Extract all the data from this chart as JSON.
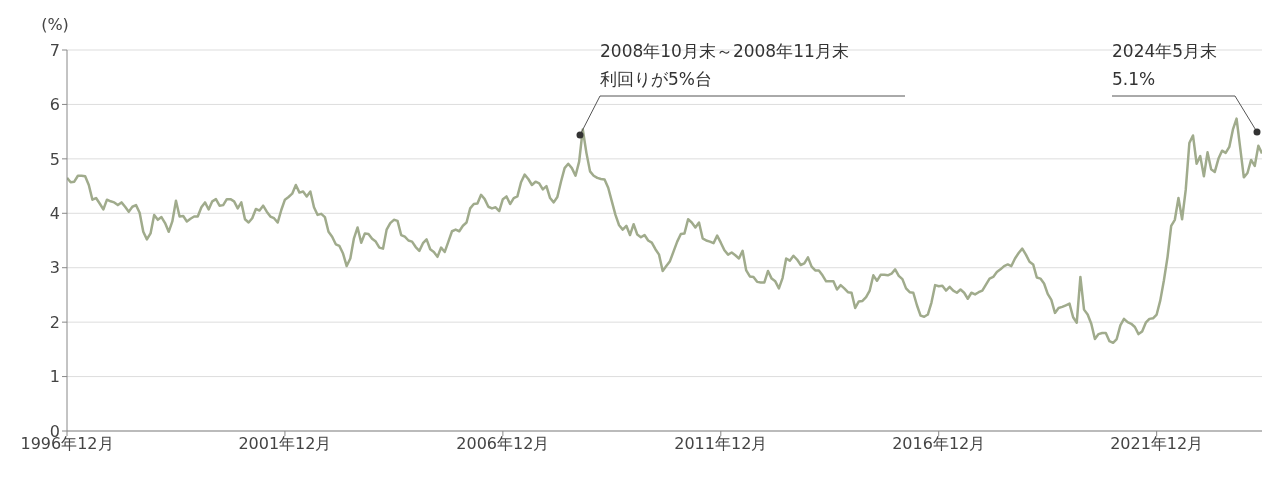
{
  "chart_data": {
    "type": "line",
    "ylabel": "(%)",
    "color": "#a0ab8c",
    "xlim": [
      "1996-12",
      "2024-05"
    ],
    "xticks": [
      {
        "value": "1996-12",
        "label": "1996年12月"
      },
      {
        "value": "2001-12",
        "label": "2001年12月"
      },
      {
        "value": "2006-12",
        "label": "2006年12月"
      },
      {
        "value": "2011-12",
        "label": "2011年12月"
      },
      {
        "value": "2016-12",
        "label": "2016年12月"
      },
      {
        "value": "2021-12",
        "label": "2021年12月"
      }
    ],
    "ylim": [
      0,
      7
    ],
    "yticks": [
      0,
      1,
      2,
      3,
      4,
      5,
      6,
      7
    ],
    "grid": "y",
    "annotations": [
      "2008年10月末～2008年11月末",
      "利回りが5%台",
      "2024年5月末",
      "5.1%"
    ],
    "x": [
      "1996-12",
      "1997-01",
      "1997-02",
      "1997-03",
      "1997-04",
      "1997-05",
      "1997-06",
      "1997-07",
      "1997-08",
      "1997-09",
      "1997-10",
      "1997-11",
      "1997-12",
      "1998-01",
      "1998-02",
      "1998-03",
      "1998-04",
      "1998-05",
      "1998-06",
      "1998-07",
      "1998-08",
      "1998-09",
      "1998-10",
      "1998-11",
      "1998-12",
      "1999-01",
      "1999-02",
      "1999-03",
      "1999-04",
      "1999-05",
      "1999-06",
      "1999-07",
      "1999-08",
      "1999-09",
      "1999-10",
      "1999-11",
      "1999-12",
      "2000-01",
      "2000-02",
      "2000-03",
      "2000-04",
      "2000-05",
      "2000-06",
      "2000-07",
      "2000-08",
      "2000-09",
      "2000-10",
      "2000-11",
      "2000-12",
      "2001-01",
      "2001-02",
      "2001-03",
      "2001-04",
      "2001-05",
      "2001-06",
      "2001-07",
      "2001-08",
      "2001-09",
      "2001-10",
      "2001-11",
      "2001-12",
      "2002-01",
      "2002-02",
      "2002-03",
      "2002-04",
      "2002-05",
      "2002-06",
      "2002-07",
      "2002-08",
      "2002-09",
      "2002-10",
      "2002-11",
      "2002-12",
      "2003-01",
      "2003-02",
      "2003-03",
      "2003-04",
      "2003-05",
      "2003-06",
      "2003-07",
      "2003-08",
      "2003-09",
      "2003-10",
      "2003-11",
      "2003-12",
      "2004-01",
      "2004-02",
      "2004-03",
      "2004-04",
      "2004-05",
      "2004-06",
      "2004-07",
      "2004-08",
      "2004-09",
      "2004-10",
      "2004-11",
      "2004-12",
      "2005-01",
      "2005-02",
      "2005-03",
      "2005-04",
      "2005-05",
      "2005-06",
      "2005-07",
      "2005-08",
      "2005-09",
      "2005-10",
      "2005-11",
      "2005-12",
      "2006-01",
      "2006-02",
      "2006-03",
      "2006-04",
      "2006-05",
      "2006-06",
      "2006-07",
      "2006-08",
      "2006-09",
      "2006-10",
      "2006-11",
      "2006-12",
      "2007-01",
      "2007-02",
      "2007-03",
      "2007-04",
      "2007-05",
      "2007-06",
      "2007-07",
      "2007-08",
      "2007-09",
      "2007-10",
      "2007-11",
      "2007-12",
      "2008-01",
      "2008-02",
      "2008-03",
      "2008-04",
      "2008-05",
      "2008-06",
      "2008-07",
      "2008-08",
      "2008-09",
      "2008-10",
      "2008-11",
      "2008-12",
      "2009-01",
      "2009-02",
      "2009-03",
      "2009-04",
      "2009-05",
      "2009-06",
      "2009-07",
      "2009-08",
      "2009-09",
      "2009-10",
      "2009-11",
      "2009-12",
      "2010-01",
      "2010-02",
      "2010-03",
      "2010-04",
      "2010-05",
      "2010-06",
      "2010-07",
      "2010-08",
      "2010-09",
      "2010-10",
      "2010-11",
      "2010-12",
      "2011-01",
      "2011-02",
      "2011-03",
      "2011-04",
      "2011-05",
      "2011-06",
      "2011-07",
      "2011-08",
      "2011-09",
      "2011-10",
      "2011-11",
      "2011-12",
      "2012-01",
      "2012-02",
      "2012-03",
      "2012-04",
      "2012-05",
      "2012-06",
      "2012-07",
      "2012-08",
      "2012-09",
      "2012-10",
      "2012-11",
      "2012-12",
      "2013-01",
      "2013-02",
      "2013-03",
      "2013-04",
      "2013-05",
      "2013-06",
      "2013-07",
      "2013-08",
      "2013-09",
      "2013-10",
      "2013-11",
      "2013-12",
      "2014-01",
      "2014-02",
      "2014-03",
      "2014-04",
      "2014-05",
      "2014-06",
      "2014-07",
      "2014-08",
      "2014-09",
      "2014-10",
      "2014-11",
      "2014-12",
      "2015-01",
      "2015-02",
      "2015-03",
      "2015-04",
      "2015-05",
      "2015-06",
      "2015-07",
      "2015-08",
      "2015-09",
      "2015-10",
      "2015-11",
      "2015-12",
      "2016-01",
      "2016-02",
      "2016-03",
      "2016-04",
      "2016-05",
      "2016-06",
      "2016-07",
      "2016-08",
      "2016-09",
      "2016-10",
      "2016-11",
      "2016-12",
      "2017-01",
      "2017-02",
      "2017-03",
      "2017-04",
      "2017-05",
      "2017-06",
      "2017-07",
      "2017-08",
      "2017-09",
      "2017-10",
      "2017-11",
      "2017-12",
      "2018-01",
      "2018-02",
      "2018-03",
      "2018-04",
      "2018-05",
      "2018-06",
      "2018-07",
      "2018-08",
      "2018-09",
      "2018-10",
      "2018-11",
      "2018-12",
      "2019-01",
      "2019-02",
      "2019-03",
      "2019-04",
      "2019-05",
      "2019-06",
      "2019-07",
      "2019-08",
      "2019-09",
      "2019-10",
      "2019-11",
      "2019-12",
      "2020-01",
      "2020-02",
      "2020-03",
      "2020-04",
      "2020-05",
      "2020-06",
      "2020-07",
      "2020-08",
      "2020-09",
      "2020-10",
      "2020-11",
      "2020-12",
      "2021-01",
      "2021-02",
      "2021-03",
      "2021-04",
      "2021-05",
      "2021-06",
      "2021-07",
      "2021-08",
      "2021-09",
      "2021-10",
      "2021-11",
      "2021-12",
      "2022-01",
      "2022-02",
      "2022-03",
      "2022-04",
      "2022-05",
      "2022-06",
      "2022-07",
      "2022-08",
      "2022-09",
      "2022-10",
      "2022-11",
      "2022-12",
      "2023-01",
      "2023-02",
      "2023-03",
      "2023-04",
      "2023-05",
      "2023-06",
      "2023-07",
      "2023-08",
      "2023-09",
      "2023-10",
      "2023-11",
      "2023-12",
      "2024-01",
      "2024-02",
      "2024-03",
      "2024-04",
      "2024-05"
    ],
    "values": [
      4.65,
      4.57,
      4.58,
      4.69,
      4.69,
      4.68,
      4.52,
      4.25,
      4.28,
      4.18,
      4.07,
      4.25,
      4.22,
      4.2,
      4.15,
      4.2,
      4.12,
      4.03,
      4.12,
      4.15,
      4.01,
      3.66,
      3.52,
      3.63,
      3.97,
      3.88,
      3.93,
      3.82,
      3.66,
      3.85,
      4.23,
      3.94,
      3.95,
      3.85,
      3.9,
      3.94,
      3.94,
      4.11,
      4.2,
      4.07,
      4.22,
      4.26,
      4.14,
      4.15,
      4.26,
      4.26,
      4.22,
      4.09,
      4.2,
      3.89,
      3.83,
      3.91,
      4.08,
      4.05,
      4.14,
      4.03,
      3.94,
      3.91,
      3.83,
      4.06,
      4.25,
      4.3,
      4.36,
      4.52,
      4.38,
      4.4,
      4.31,
      4.4,
      4.11,
      3.97,
      3.99,
      3.93,
      3.66,
      3.57,
      3.43,
      3.4,
      3.26,
      3.03,
      3.17,
      3.54,
      3.74,
      3.46,
      3.63,
      3.62,
      3.53,
      3.48,
      3.37,
      3.35,
      3.7,
      3.82,
      3.88,
      3.86,
      3.6,
      3.57,
      3.5,
      3.48,
      3.38,
      3.31,
      3.45,
      3.52,
      3.34,
      3.29,
      3.2,
      3.37,
      3.29,
      3.48,
      3.67,
      3.7,
      3.67,
      3.77,
      3.83,
      4.09,
      4.17,
      4.18,
      4.34,
      4.26,
      4.12,
      4.09,
      4.11,
      4.04,
      4.26,
      4.31,
      4.17,
      4.28,
      4.31,
      4.57,
      4.71,
      4.63,
      4.52,
      4.58,
      4.55,
      4.44,
      4.5,
      4.28,
      4.2,
      4.3,
      4.58,
      4.83,
      4.91,
      4.83,
      4.69,
      4.95,
      5.54,
      5.11,
      4.77,
      4.69,
      4.65,
      4.63,
      4.62,
      4.47,
      4.22,
      3.97,
      3.78,
      3.7,
      3.77,
      3.6,
      3.8,
      3.61,
      3.56,
      3.6,
      3.5,
      3.46,
      3.34,
      3.24,
      2.94,
      3.03,
      3.12,
      3.3,
      3.48,
      3.62,
      3.63,
      3.89,
      3.83,
      3.74,
      3.83,
      3.54,
      3.5,
      3.48,
      3.45,
      3.59,
      3.46,
      3.32,
      3.24,
      3.28,
      3.23,
      3.17,
      3.31,
      2.95,
      2.84,
      2.83,
      2.74,
      2.73,
      2.73,
      2.94,
      2.8,
      2.75,
      2.62,
      2.81,
      3.17,
      3.13,
      3.22,
      3.15,
      3.05,
      3.08,
      3.19,
      3.02,
      2.95,
      2.95,
      2.86,
      2.75,
      2.75,
      2.75,
      2.6,
      2.68,
      2.62,
      2.55,
      2.54,
      2.26,
      2.38,
      2.39,
      2.46,
      2.58,
      2.86,
      2.76,
      2.87,
      2.87,
      2.86,
      2.89,
      2.97,
      2.85,
      2.79,
      2.62,
      2.55,
      2.54,
      2.31,
      2.12,
      2.1,
      2.14,
      2.36,
      2.68,
      2.66,
      2.67,
      2.58,
      2.65,
      2.58,
      2.54,
      2.6,
      2.54,
      2.43,
      2.54,
      2.51,
      2.55,
      2.58,
      2.69,
      2.8,
      2.83,
      2.92,
      2.97,
      3.03,
      3.06,
      3.03,
      3.17,
      3.27,
      3.35,
      3.24,
      3.11,
      3.06,
      2.82,
      2.8,
      2.71,
      2.52,
      2.41,
      2.17,
      2.26,
      2.28,
      2.31,
      2.34,
      2.09,
      1.99,
      2.83,
      2.23,
      2.14,
      1.97,
      1.69,
      1.78,
      1.8,
      1.8,
      1.65,
      1.62,
      1.69,
      1.94,
      2.06,
      2.0,
      1.97,
      1.91,
      1.78,
      1.83,
      1.99,
      2.06,
      2.07,
      2.14,
      2.4,
      2.77,
      3.2,
      3.77,
      3.88,
      4.28,
      3.89,
      4.43,
      5.29,
      5.43,
      4.91,
      5.05,
      4.68,
      5.12,
      4.81,
      4.76,
      5.0,
      5.15,
      5.11,
      5.22,
      5.54,
      5.74,
      5.2,
      4.66,
      4.74,
      4.98,
      4.87,
      5.24,
      5.1
    ]
  }
}
